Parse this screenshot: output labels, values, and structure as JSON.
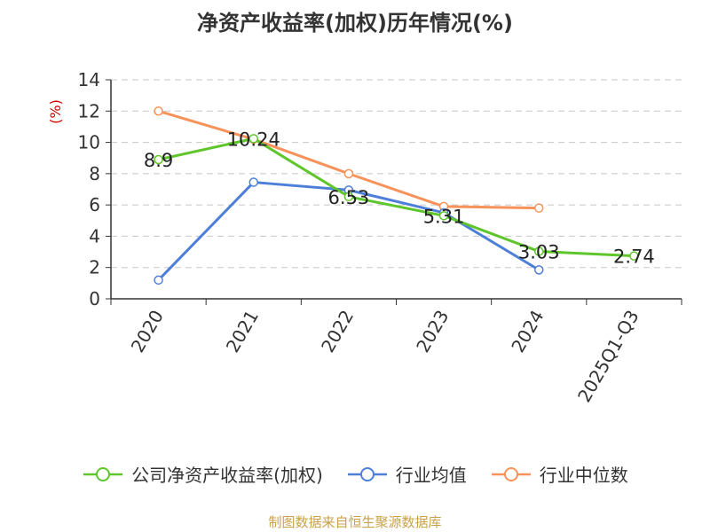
{
  "chart_data": {
    "type": "line",
    "title": "净资产收益率(加权)历年情况(%)",
    "ylabel": "(%)",
    "xlabel": "",
    "categories": [
      "2020",
      "2021",
      "2022",
      "2023",
      "2024",
      "2025Q1-Q3"
    ],
    "ylim": [
      0,
      14
    ],
    "yticks": [
      0,
      2,
      4,
      6,
      8,
      10,
      12,
      14
    ],
    "grid": true,
    "legend_position": "bottom",
    "series": [
      {
        "name": "公司净资产收益率(加权)",
        "color": "#5ec52b",
        "values": [
          8.9,
          10.24,
          6.53,
          5.31,
          3.03,
          2.74
        ],
        "labels": [
          "8.9",
          "10.24",
          "6.53",
          "5.31",
          "3.03",
          "2.74"
        ]
      },
      {
        "name": "行业均值",
        "color": "#4e7fd8",
        "values": [
          1.2,
          7.45,
          6.95,
          5.5,
          1.85,
          null
        ]
      },
      {
        "name": "行业中位数",
        "color": "#f7925a",
        "values": [
          12.0,
          10.2,
          8.0,
          5.9,
          5.8,
          null
        ]
      }
    ]
  },
  "source": "制图数据来自恒生聚源数据库"
}
